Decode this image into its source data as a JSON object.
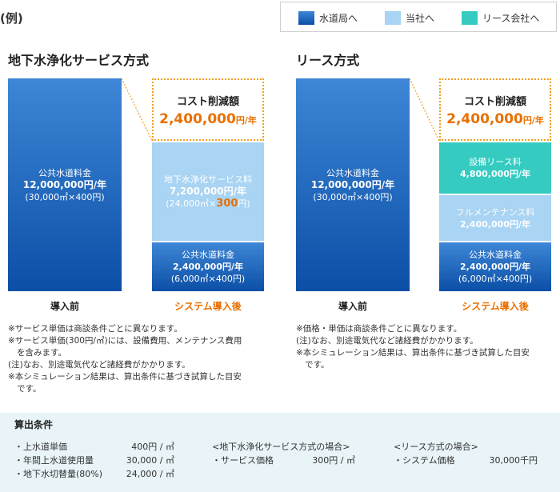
{
  "example_label": "(例)",
  "legend": [
    {
      "label": "水道局へ",
      "color": "#1565c0"
    },
    {
      "label": "当社へ",
      "color": "#a9d4f3"
    },
    {
      "label": "リース会社へ",
      "color": "#35cbc1"
    }
  ],
  "left": {
    "title": "地下水浄化サービス方式",
    "before_bar": {
      "l1": "公共水道料金",
      "l2": "12,000,000円/年",
      "l3": "(30,000㎥×400円)"
    },
    "savings": {
      "title": "コスト削減額",
      "value": "2,400,000",
      "unit": "円/年"
    },
    "service_bar": {
      "l1": "地下水浄化サービス料",
      "l2": "7,200,000円/年",
      "l3a": "(24,000㎥×",
      "l3b": "300",
      "l3c": "円)"
    },
    "public_bar": {
      "l1": "公共水道料金",
      "l2": "2,400,000円/年",
      "l3": "(6,000㎥×400円)"
    },
    "before_caption": "導入前",
    "after_caption": "システム導入後",
    "notes": [
      "※サービス単価は商談条件ごとに異なります。",
      "※サービス単価(300円/㎥)には、設備費用、メンテナンス費用",
      "を含みます。",
      "(注)なお、別途電気代など諸経費がかかります。",
      "※本シミュレーション結果は、算出条件に基づき試算した目安",
      "です。"
    ]
  },
  "right": {
    "title": "リース方式",
    "before_bar": {
      "l1": "公共水道料金",
      "l2": "12,000,000円/年",
      "l3": "(30,000㎥×400円)"
    },
    "savings": {
      "title": "コスト削減額",
      "value": "2,400,000",
      "unit": "円/年"
    },
    "lease_bar": {
      "l1": "設備リース料",
      "l2": "4,800,000円/年"
    },
    "maint_bar": {
      "l1": "フルメンテナンス料",
      "l2": "2,400,000円/年"
    },
    "public_bar": {
      "l1": "公共水道料金",
      "l2": "2,400,000円/年",
      "l3": "(6,000㎥×400円)"
    },
    "before_caption": "導入前",
    "after_caption": "システム導入後",
    "notes": [
      "※価格・単価は商談条件ごとに異なります。",
      "(注)なお、別途電気代など諸経費がかかります。",
      "※本シミュレーション結果は、算出条件に基づき試算した目安",
      "です。"
    ]
  },
  "conditions": {
    "title": "算出条件",
    "items": [
      {
        "label": "・上水道単価",
        "value": "400円 / ㎥"
      },
      {
        "label": "・年間上水道使用量",
        "value": "30,000 / ㎥"
      },
      {
        "label": "・地下水切替量(80%)",
        "value": "24,000 / ㎥"
      }
    ],
    "service_case": {
      "heading": "<地下水浄化サービス方式の場合>",
      "label": "・サービス価格",
      "value": "300円 / ㎥"
    },
    "lease_case": {
      "heading": "<リース方式の場合>",
      "label": "・システム価格",
      "value": "30,000千円"
    }
  }
}
